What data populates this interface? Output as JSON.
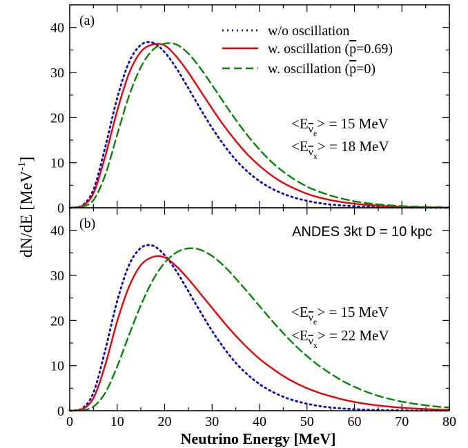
{
  "figure": {
    "ylabel": "dN/dE [MeV",
    "ylabel_sup": "-1",
    "ylabel_close": "]",
    "xlabel": "Neutrino Energy [MeV]"
  },
  "legend": {
    "entries": [
      {
        "key": "wo",
        "label": "w/o oscillation",
        "color": "#0000cc",
        "style": "dotted"
      },
      {
        "key": "p069",
        "label_pre": "w. oscillation (",
        "p_bar": "p",
        "label_post": "=0.69)",
        "color": "#ee0000",
        "style": "solid"
      },
      {
        "key": "p0",
        "label_pre": "w. oscillation (",
        "p_bar": "p",
        "label_post": "=0)",
        "color": "#008800",
        "style": "dashed"
      }
    ]
  },
  "annotations": {
    "lt": "<E",
    "eq": "> = ",
    "nu": "ν",
    "sub_e": "e",
    "sub_x": "x"
  },
  "chart_data": [
    {
      "type": "line",
      "panel_label": "(a)",
      "xlim": [
        0,
        80
      ],
      "ylim": [
        0,
        45
      ],
      "xticks": [
        0,
        10,
        20,
        30,
        40,
        50,
        60,
        70,
        80
      ],
      "yticks": [
        0,
        10,
        20,
        30,
        40
      ],
      "mean_e_value": "15 MeV",
      "mean_x_value": "18 MeV",
      "x": [
        0,
        2.5,
        5,
        7.5,
        10,
        12.5,
        15,
        17.5,
        20,
        22.5,
        25,
        27.5,
        30,
        32.5,
        35,
        37.5,
        40,
        42.5,
        45,
        47.5,
        50,
        52.5,
        55,
        57.5,
        60,
        62.5,
        65,
        67.5,
        70,
        72.5,
        75,
        77.5,
        80
      ],
      "series": [
        {
          "name": "w/o oscillation",
          "color": "#0000cc",
          "dash": "2,5",
          "values": [
            0,
            0.4,
            4.0,
            13.5,
            24.3,
            32.3,
            36.1,
            36.6,
            34.5,
            30.9,
            26.5,
            22.0,
            17.7,
            13.9,
            10.6,
            8.0,
            5.9,
            4.3,
            3.1,
            2.2,
            1.55,
            1.05,
            0.72,
            0.49,
            0.33,
            0.22,
            0.14,
            0.09,
            0.06,
            0.04,
            0.03,
            0.02,
            0.01
          ]
        },
        {
          "name": "w. oscillation (p=0.69)",
          "color": "#ee0000",
          "dash": "",
          "values": [
            0,
            0.3,
            3.2,
            11.5,
            21.5,
            29.8,
            34.6,
            36.2,
            36.0,
            33.5,
            30.0,
            26.0,
            22.0,
            18.2,
            14.8,
            11.8,
            9.3,
            7.2,
            5.5,
            4.2,
            3.1,
            2.3,
            1.7,
            1.25,
            0.9,
            0.65,
            0.46,
            0.33,
            0.23,
            0.16,
            0.11,
            0.08,
            0.05
          ]
        },
        {
          "name": "w. oscillation (p=0)",
          "color": "#008800",
          "dash": "11,6",
          "values": [
            0,
            0.2,
            1.7,
            7.3,
            16.2,
            24.8,
            31.2,
            35.0,
            36.4,
            36.2,
            34.2,
            31.0,
            27.2,
            23.3,
            19.5,
            16.0,
            12.9,
            10.2,
            8.0,
            6.2,
            4.7,
            3.6,
            2.7,
            2.0,
            1.45,
            1.05,
            0.76,
            0.54,
            0.38,
            0.27,
            0.19,
            0.13,
            0.09
          ]
        }
      ]
    },
    {
      "type": "line",
      "panel_label": "(b)",
      "title": "ANDES 3kt  D = 10 kpc",
      "xlim": [
        0,
        80
      ],
      "ylim": [
        0,
        45
      ],
      "xticks": [
        0,
        10,
        20,
        30,
        40,
        50,
        60,
        70,
        80
      ],
      "yticks": [
        0,
        10,
        20,
        30,
        40
      ],
      "mean_e_value": "15 MeV",
      "mean_x_value": "22 MeV",
      "x": [
        0,
        2.5,
        5,
        7.5,
        10,
        12.5,
        15,
        17.5,
        20,
        22.5,
        25,
        27.5,
        30,
        32.5,
        35,
        37.5,
        40,
        42.5,
        45,
        47.5,
        50,
        52.5,
        55,
        57.5,
        60,
        62.5,
        65,
        67.5,
        70,
        72.5,
        75,
        77.5,
        80
      ],
      "series": [
        {
          "name": "w/o oscillation",
          "color": "#0000cc",
          "dash": "2,5",
          "values": [
            0,
            0.4,
            4.0,
            13.5,
            24.3,
            32.3,
            36.1,
            36.6,
            34.5,
            30.9,
            26.5,
            22.0,
            17.7,
            13.9,
            10.6,
            8.0,
            5.9,
            4.3,
            3.1,
            2.2,
            1.55,
            1.05,
            0.72,
            0.49,
            0.33,
            0.22,
            0.14,
            0.09,
            0.06,
            0.04,
            0.03,
            0.02,
            0.01
          ]
        },
        {
          "name": "w. oscillation (p=0.69)",
          "color": "#ee0000",
          "dash": "",
          "values": [
            0,
            0.3,
            2.8,
            10.2,
            19.8,
            27.5,
            32.3,
            34.1,
            34.0,
            32.0,
            29.2,
            26.0,
            22.8,
            19.6,
            16.6,
            13.9,
            11.5,
            9.5,
            7.7,
            6.2,
            5.0,
            4.0,
            3.2,
            2.5,
            1.95,
            1.5,
            1.15,
            0.88,
            0.66,
            0.5,
            0.37,
            0.27,
            0.2
          ]
        },
        {
          "name": "w. oscillation (p=0)",
          "color": "#008800",
          "dash": "11,6",
          "values": [
            0,
            0.1,
            0.9,
            4.0,
            9.8,
            16.8,
            23.4,
            28.9,
            32.8,
            35.1,
            36.0,
            35.7,
            34.3,
            32.1,
            29.3,
            26.3,
            23.2,
            20.1,
            17.2,
            14.5,
            12.1,
            10.0,
            8.2,
            6.6,
            5.3,
            4.2,
            3.3,
            2.6,
            2.0,
            1.55,
            1.2,
            0.9,
            0.7
          ]
        }
      ]
    }
  ]
}
